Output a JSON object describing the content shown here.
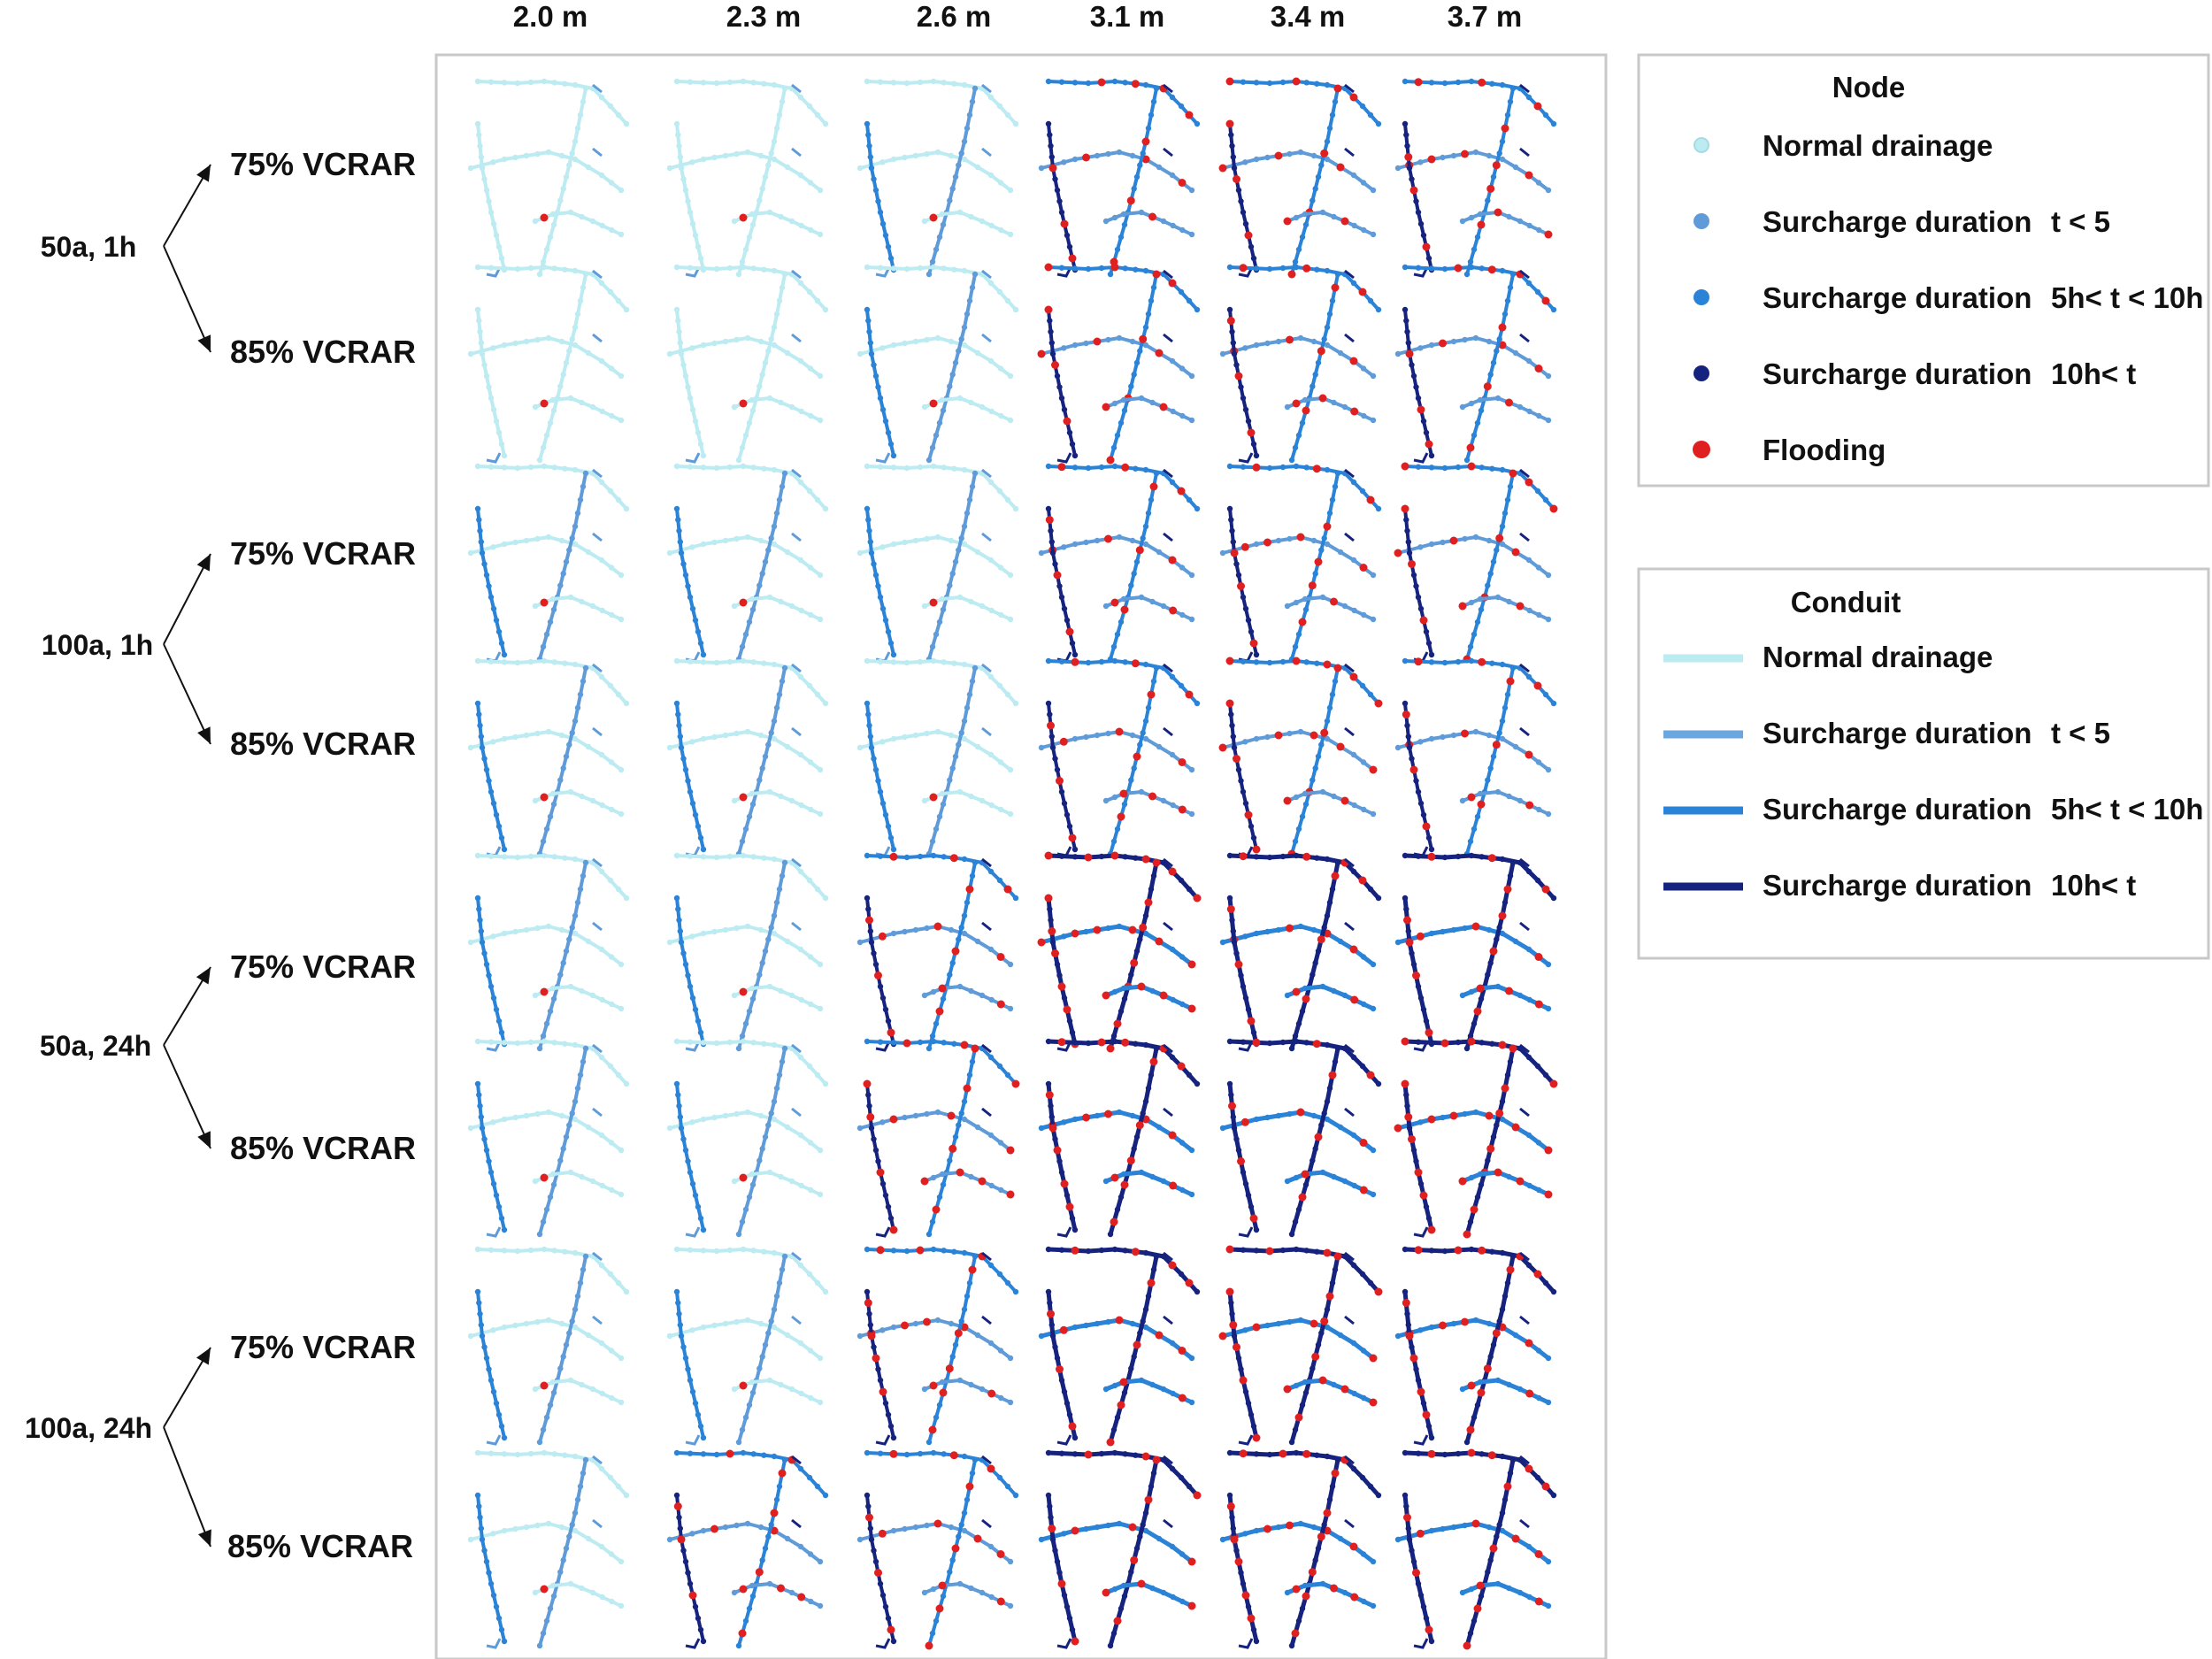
{
  "column_headers": [
    "2.0 m",
    "2.3 m",
    "2.6 m",
    "3.1 m",
    "3.4 m",
    "3.7 m"
  ],
  "groups": [
    {
      "label": "50a, 1h",
      "rows": [
        "75% VCRAR",
        "85% VCRAR"
      ]
    },
    {
      "label": "100a, 1h",
      "rows": [
        "75% VCRAR",
        "85% VCRAR"
      ]
    },
    {
      "label": "50a, 24h",
      "rows": [
        "75% VCRAR",
        "85% VCRAR"
      ]
    },
    {
      "label": "100a, 24h",
      "rows": [
        "75% VCRAR",
        "85% VCRAR"
      ]
    }
  ],
  "node_legend": {
    "title": "Node",
    "items": [
      {
        "label": "Normal drainage",
        "condition": "",
        "color": "#bdebf2"
      },
      {
        "label": "Surcharge duration",
        "condition": "t < 5",
        "color": "#5f9bd8"
      },
      {
        "label": "Surcharge duration",
        "condition": "5h< t < 10h",
        "color": "#2a83d6"
      },
      {
        "label": "Surcharge duration",
        "condition": "10h< t",
        "color": "#16237e"
      },
      {
        "label": "Flooding",
        "condition": "",
        "color": "#e02020"
      }
    ]
  },
  "conduit_legend": {
    "title": "Conduit",
    "items": [
      {
        "label": "Normal drainage",
        "condition": "",
        "color": "#bdebf2"
      },
      {
        "label": "Surcharge duration",
        "condition": "t < 5",
        "color": "#6aa6e0"
      },
      {
        "label": "Surcharge duration",
        "condition": "5h< t < 10h",
        "color": "#2a83d6"
      },
      {
        "label": "Surcharge duration",
        "condition": "10h< t",
        "color": "#16237e"
      }
    ]
  },
  "colors": {
    "normal": "#bdebf2",
    "surcharge_short": "#5f9bd8",
    "surcharge_mid": "#2a83d6",
    "surcharge_long": "#16237e",
    "flooding": "#e02020"
  },
  "network_states": [
    [
      1,
      1,
      2,
      3,
      3,
      3
    ],
    [
      1,
      1,
      2,
      3,
      3,
      3
    ],
    [
      2,
      2,
      2,
      3,
      3,
      3
    ],
    [
      2,
      2,
      2,
      3,
      3,
      3
    ],
    [
      2,
      2,
      3,
      4,
      4,
      4
    ],
    [
      2,
      2,
      3,
      4,
      4,
      4
    ],
    [
      2,
      2,
      3,
      4,
      4,
      4
    ],
    [
      2,
      3,
      3,
      4,
      4,
      4
    ]
  ]
}
